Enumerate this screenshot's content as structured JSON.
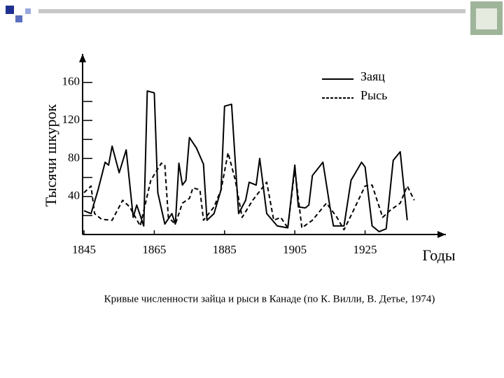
{
  "chart_data": {
    "type": "line",
    "y_label": "Тысячи шкурок",
    "x_label": "Годы",
    "caption": "Кривые численности зайца и рыси в Канаде (по К. Вилли, В. Детье, 1974)",
    "xlim": [
      1843,
      1948
    ],
    "xticks": [
      1845,
      1865,
      1885,
      1905,
      1925
    ],
    "ylim": [
      0,
      190
    ],
    "yticks": [
      40,
      80,
      120,
      160
    ],
    "yminor": [
      20,
      60,
      100,
      140
    ],
    "series": [
      {
        "name": "Заяц",
        "color": "#000000",
        "dashed": false,
        "x": [
          1845,
          1847,
          1849,
          1851,
          1852,
          1853,
          1855,
          1857,
          1859,
          1860,
          1862,
          1863,
          1865,
          1866,
          1868,
          1870,
          1871,
          1872,
          1873,
          1874,
          1875,
          1877,
          1879,
          1880,
          1882,
          1884,
          1885,
          1887,
          1889,
          1891,
          1892,
          1894,
          1895,
          1897,
          1900,
          1903,
          1905,
          1906,
          1908,
          1909,
          1910,
          1913,
          1915,
          1916,
          1919,
          1921,
          1924,
          1925,
          1927,
          1929,
          1931,
          1933,
          1935,
          1937
        ],
        "values": [
          25,
          22,
          47,
          76,
          73,
          93,
          65,
          89,
          18,
          31,
          9,
          151,
          149,
          44,
          11,
          22,
          11,
          75,
          52,
          57,
          102,
          91,
          74,
          15,
          22,
          47,
          135,
          137,
          22,
          36,
          55,
          52,
          80,
          22,
          9,
          7,
          73,
          29,
          28,
          31,
          62,
          76,
          29,
          9,
          9,
          57,
          76,
          71,
          9,
          3,
          6,
          78,
          87,
          15
        ]
      },
      {
        "name": "Рысь",
        "color": "#000000",
        "dashed": true,
        "x": [
          1845,
          1847,
          1848,
          1850,
          1853,
          1856,
          1858,
          1861,
          1864,
          1867,
          1868,
          1869,
          1871,
          1873,
          1875,
          1876,
          1878,
          1879,
          1882,
          1884,
          1886,
          1888,
          1890,
          1893,
          1897,
          1899,
          1901,
          1903,
          1905,
          1907,
          1910,
          1914,
          1917,
          1919,
          1921,
          1925,
          1927,
          1930,
          1932,
          1935,
          1937,
          1939
        ],
        "values": [
          44,
          51,
          22,
          16,
          15,
          36,
          29,
          9,
          57,
          75,
          73,
          18,
          11,
          33,
          38,
          49,
          47,
          15,
          29,
          47,
          86,
          58,
          18,
          36,
          55,
          15,
          18,
          7,
          69,
          7,
          15,
          33,
          18,
          5,
          20,
          51,
          52,
          18,
          25,
          33,
          51,
          36
        ]
      }
    ]
  }
}
